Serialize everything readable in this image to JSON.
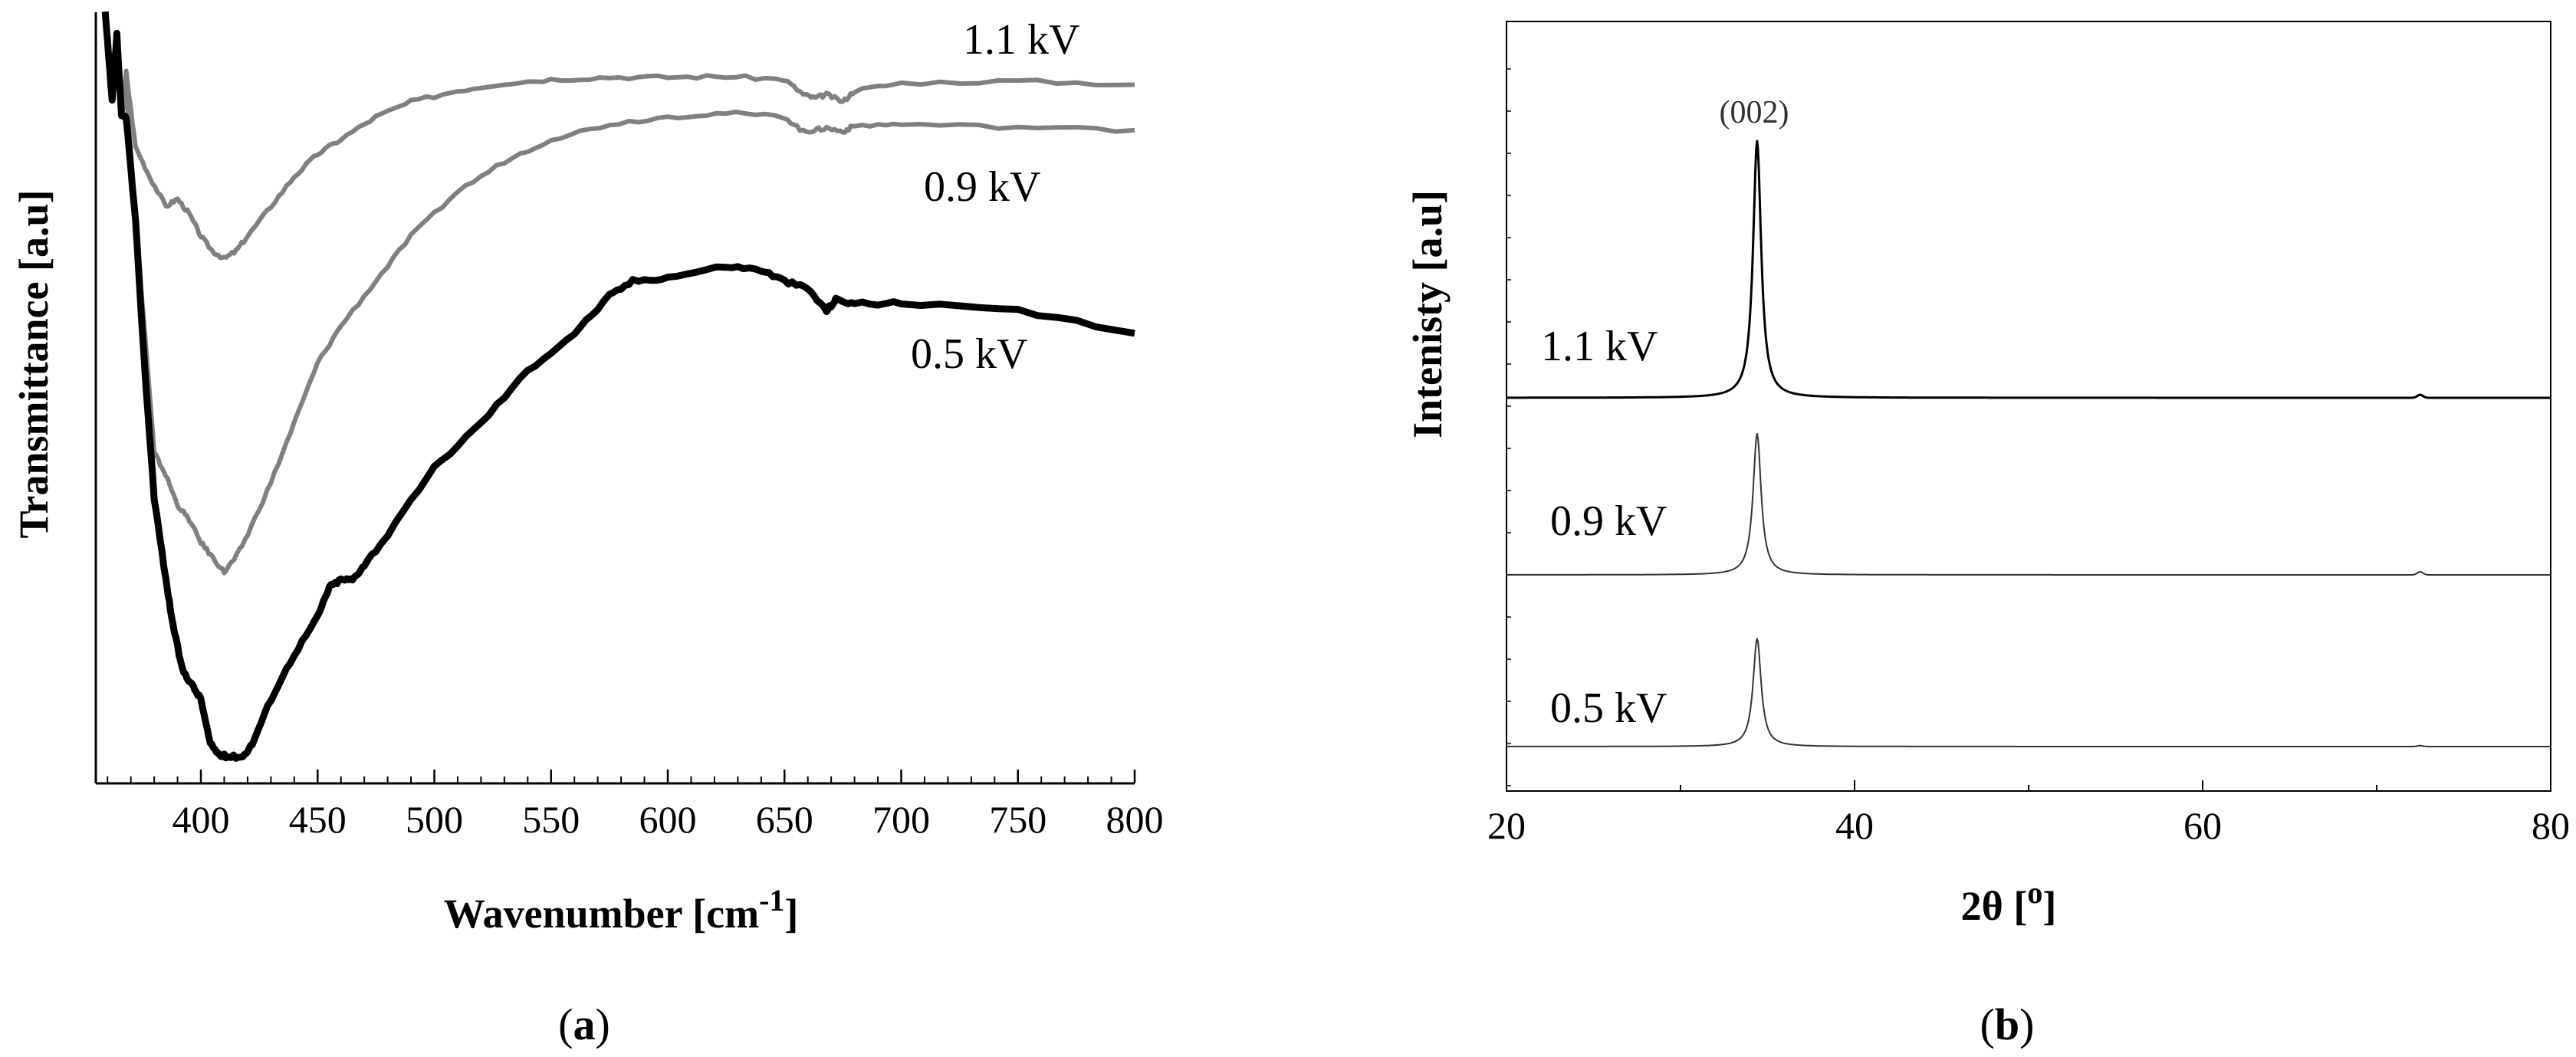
{
  "chart_data": [
    {
      "type": "line",
      "panel": "a",
      "caption": {
        "open": "(",
        "letter": "a",
        "close": ")"
      },
      "xlabel": "Wavenumber [cm",
      "xlabel_sup": "-1",
      "xlabel_end": "]",
      "ylabel": "Transmittance [a.u]",
      "xlim": [
        355,
        800
      ],
      "ylim": [
        0,
        100
      ],
      "xticks": [
        400,
        450,
        500,
        550,
        600,
        650,
        700,
        750,
        800
      ],
      "xtick_labels": [
        "400",
        "450",
        "500",
        "550",
        "600",
        "650",
        "700",
        "750",
        "800"
      ],
      "minor_xtick_step": 10,
      "series": [
        {
          "name": "1.1 kV",
          "color": "#808080",
          "x": [
            359,
            362,
            364,
            366,
            368,
            372,
            378,
            385,
            390,
            395,
            400,
            405,
            410,
            415,
            420,
            430,
            440,
            450,
            460,
            475,
            490,
            510,
            530,
            550,
            575,
            600,
            625,
            650,
            658,
            663,
            668,
            675,
            680,
            700,
            750,
            800
          ],
          "y": [
            100,
            88,
            97,
            86,
            92,
            82,
            78,
            74,
            75,
            73,
            70,
            68,
            67,
            68,
            70,
            74,
            78,
            81,
            83,
            86,
            88,
            89.5,
            90.5,
            91,
            91.3,
            91.3,
            91.4,
            91,
            89,
            88.5,
            89,
            88,
            89.5,
            90.5,
            90.8,
            90.3
          ]
        },
        {
          "name": "0.9 kV",
          "color": "#808080",
          "x": [
            359,
            362,
            364,
            366,
            368,
            372,
            376,
            380,
            385,
            390,
            395,
            400,
            405,
            410,
            415,
            420,
            430,
            440,
            450,
            460,
            475,
            490,
            510,
            530,
            550,
            575,
            600,
            625,
            650,
            658,
            663,
            668,
            675,
            680,
            700,
            750,
            800
          ],
          "y": [
            100,
            88,
            97,
            86,
            90,
            72,
            57,
            41,
            38,
            34,
            32,
            29,
            27,
            25,
            27,
            30,
            37,
            45,
            53,
            58,
            64,
            70,
            76,
            80,
            83,
            85,
            86,
            86.5,
            86,
            84,
            84.2,
            84.5,
            84,
            84.8,
            85,
            84.6,
            84.2
          ]
        },
        {
          "name": "0.5 kV",
          "color": "#000000",
          "x": [
            359,
            362,
            364,
            366,
            368,
            372,
            376,
            380,
            385,
            388,
            392,
            396,
            400,
            404,
            408,
            412,
            418,
            422,
            430,
            440,
            450,
            455,
            460,
            465,
            470,
            480,
            500,
            520,
            540,
            560,
            575,
            585,
            600,
            625,
            640,
            650,
            660,
            668,
            672,
            680,
            700,
            750,
            800
          ],
          "y": [
            100,
            88,
            97,
            86,
            86,
            72,
            52,
            35,
            24,
            18,
            12,
            10,
            8,
            2,
            0.5,
            0.3,
            0.3,
            2,
            8,
            14,
            19,
            23,
            24,
            24,
            26,
            30,
            39,
            45,
            52,
            57,
            62,
            64,
            64.5,
            66,
            65.5,
            64,
            63,
            60,
            61.5,
            61,
            61,
            60,
            57
          ]
        }
      ],
      "series_labels": [
        "1.1 kV",
        "0.9 kV",
        "0.5 kV"
      ]
    },
    {
      "type": "line",
      "panel": "b",
      "caption": {
        "open": "(",
        "letter": "b",
        "close": ")"
      },
      "xlabel": "2θ [",
      "xlabel_sup": "o",
      "xlabel_end": "]",
      "ylabel": "Intenisty [a.u]",
      "xlim": [
        20,
        80
      ],
      "xticks": [
        20,
        40,
        60,
        80
      ],
      "xtick_labels": [
        "20",
        "40",
        "60",
        "80"
      ],
      "minor_xticks": [
        30,
        50,
        70
      ],
      "peak_annotation": "(002)",
      "series": [
        {
          "name": "1.1 kV",
          "color": "#000000",
          "peak_2theta": 34.4,
          "peak_height": 1.0
        },
        {
          "name": "0.9 kV",
          "color": "#333333",
          "peak_2theta": 34.4,
          "peak_height": 0.55
        },
        {
          "name": "0.5 kV",
          "color": "#333333",
          "peak_2theta": 34.4,
          "peak_height": 0.42
        }
      ],
      "series_labels": [
        "1.1 kV",
        "0.9 kV",
        "0.5 kV"
      ]
    }
  ]
}
